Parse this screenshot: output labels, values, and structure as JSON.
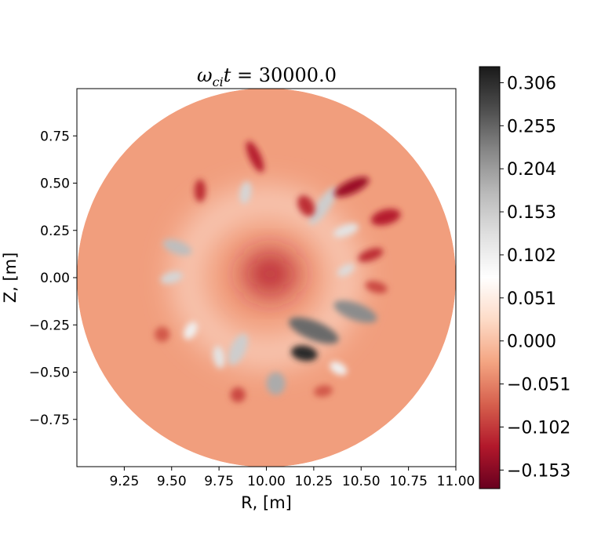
{
  "chart_data": {
    "type": "heatmap",
    "title_math": {
      "omega": "ω",
      "subscript": "ci",
      "variable": "t",
      "equals": " = ",
      "value": "30000.0"
    },
    "xlabel": "R, [m]",
    "ylabel": "Z, [m]",
    "xlim": [
      9.0,
      11.0
    ],
    "ylim": [
      -1.0,
      1.0
    ],
    "xticks": [
      9.25,
      9.5,
      9.75,
      10.0,
      10.25,
      10.5,
      10.75,
      11.0
    ],
    "xtick_labels": [
      "9.25",
      "9.50",
      "9.75",
      "10.00",
      "10.25",
      "10.50",
      "10.75",
      "11.00"
    ],
    "yticks": [
      0.75,
      0.5,
      0.25,
      0.0,
      -0.25,
      -0.5,
      -0.75
    ],
    "ytick_labels": [
      "0.75",
      "0.50",
      "0.25",
      "0.00",
      "−0.25",
      "−0.50",
      "−0.75"
    ],
    "domain": {
      "shape": "circle",
      "center_r": 10.0,
      "center_z": 0.0,
      "radius": 1.0
    },
    "colormap": "RdGy",
    "colorbar": {
      "min": -0.175,
      "max": 0.325,
      "ticks": [
        0.306,
        0.255,
        0.204,
        0.153,
        0.102,
        0.051,
        0.0,
        -0.051,
        -0.102,
        -0.153
      ],
      "tick_labels": [
        "0.306",
        "0.255",
        "0.204",
        "0.153",
        "0.102",
        "0.051",
        "0.000",
        "−0.051",
        "−0.102",
        "−0.153"
      ],
      "colors": [
        "#67001f",
        "#b2182b",
        "#d6604d",
        "#f4a582",
        "#fddbc7",
        "#ffffff",
        "#e0e0e0",
        "#bababa",
        "#878787",
        "#4d4d4d",
        "#1a1a1a"
      ]
    },
    "background_value": -0.03,
    "features": [
      {
        "kind": "core",
        "r": 10.02,
        "z": 0.02,
        "sr": 0.14,
        "sz": 0.12,
        "angle": 0,
        "value": -0.12
      },
      {
        "kind": "ring",
        "r": 10.0,
        "z": 0.0,
        "sr": 0.42,
        "sz": 0.4,
        "angle": 0,
        "value": 0.05
      },
      {
        "kind": "blob",
        "r": 9.53,
        "z": 0.16,
        "sr": 0.08,
        "sz": 0.035,
        "angle": -20,
        "value": 0.17
      },
      {
        "kind": "blob",
        "r": 9.5,
        "z": 0.0,
        "sr": 0.06,
        "sz": 0.03,
        "angle": 15,
        "value": 0.14
      },
      {
        "kind": "blob",
        "r": 9.89,
        "z": 0.45,
        "sr": 0.03,
        "sz": 0.06,
        "angle": -10,
        "value": 0.14
      },
      {
        "kind": "blob",
        "r": 10.3,
        "z": 0.38,
        "sr": 0.12,
        "sz": 0.035,
        "angle": 55,
        "value": 0.15
      },
      {
        "kind": "blob",
        "r": 10.42,
        "z": 0.25,
        "sr": 0.07,
        "sz": 0.03,
        "angle": 20,
        "value": 0.12
      },
      {
        "kind": "blob",
        "r": 10.42,
        "z": 0.04,
        "sr": 0.05,
        "sz": 0.025,
        "angle": 30,
        "value": 0.13
      },
      {
        "kind": "blob",
        "r": 10.47,
        "z": -0.18,
        "sr": 0.12,
        "sz": 0.045,
        "angle": -20,
        "value": 0.22
      },
      {
        "kind": "blob",
        "r": 10.25,
        "z": -0.28,
        "sr": 0.14,
        "sz": 0.05,
        "angle": -22,
        "value": 0.25
      },
      {
        "kind": "blob",
        "r": 10.2,
        "z": -0.4,
        "sr": 0.07,
        "sz": 0.04,
        "angle": -10,
        "value": 0.31
      },
      {
        "kind": "blob",
        "r": 10.05,
        "z": -0.56,
        "sr": 0.05,
        "sz": 0.06,
        "angle": 0,
        "value": 0.19
      },
      {
        "kind": "blob",
        "r": 9.85,
        "z": -0.38,
        "sr": 0.04,
        "sz": 0.09,
        "angle": -25,
        "value": 0.15
      },
      {
        "kind": "blob",
        "r": 9.75,
        "z": -0.42,
        "sr": 0.03,
        "sz": 0.06,
        "angle": 10,
        "value": 0.12
      },
      {
        "kind": "blob",
        "r": 9.6,
        "z": -0.28,
        "sr": 0.03,
        "sz": 0.05,
        "angle": -30,
        "value": 0.1
      },
      {
        "kind": "blob",
        "r": 10.38,
        "z": -0.48,
        "sr": 0.05,
        "sz": 0.03,
        "angle": -30,
        "value": 0.1
      },
      {
        "kind": "dark",
        "r": 10.45,
        "z": 0.48,
        "sr": 0.1,
        "sz": 0.035,
        "angle": 25,
        "value": -0.14
      },
      {
        "kind": "dark",
        "r": 10.63,
        "z": 0.32,
        "sr": 0.08,
        "sz": 0.04,
        "angle": 15,
        "value": -0.12
      },
      {
        "kind": "dark",
        "r": 10.55,
        "z": 0.12,
        "sr": 0.07,
        "sz": 0.03,
        "angle": 20,
        "value": -0.11
      },
      {
        "kind": "dark",
        "r": 9.94,
        "z": 0.64,
        "sr": 0.03,
        "sz": 0.09,
        "angle": 25,
        "value": -0.12
      },
      {
        "kind": "dark",
        "r": 9.65,
        "z": 0.46,
        "sr": 0.03,
        "sz": 0.06,
        "angle": 0,
        "value": -0.11
      },
      {
        "kind": "dark",
        "r": 10.21,
        "z": 0.38,
        "sr": 0.04,
        "sz": 0.06,
        "angle": 30,
        "value": -0.11
      },
      {
        "kind": "dark",
        "r": 10.58,
        "z": -0.05,
        "sr": 0.06,
        "sz": 0.03,
        "angle": -15,
        "value": -0.09
      },
      {
        "kind": "dark",
        "r": 9.45,
        "z": -0.3,
        "sr": 0.04,
        "sz": 0.04,
        "angle": 0,
        "value": -0.08
      },
      {
        "kind": "dark",
        "r": 9.85,
        "z": -0.62,
        "sr": 0.04,
        "sz": 0.04,
        "angle": 0,
        "value": -0.09
      },
      {
        "kind": "dark",
        "r": 10.3,
        "z": -0.6,
        "sr": 0.05,
        "sz": 0.03,
        "angle": 10,
        "value": -0.08
      }
    ]
  }
}
